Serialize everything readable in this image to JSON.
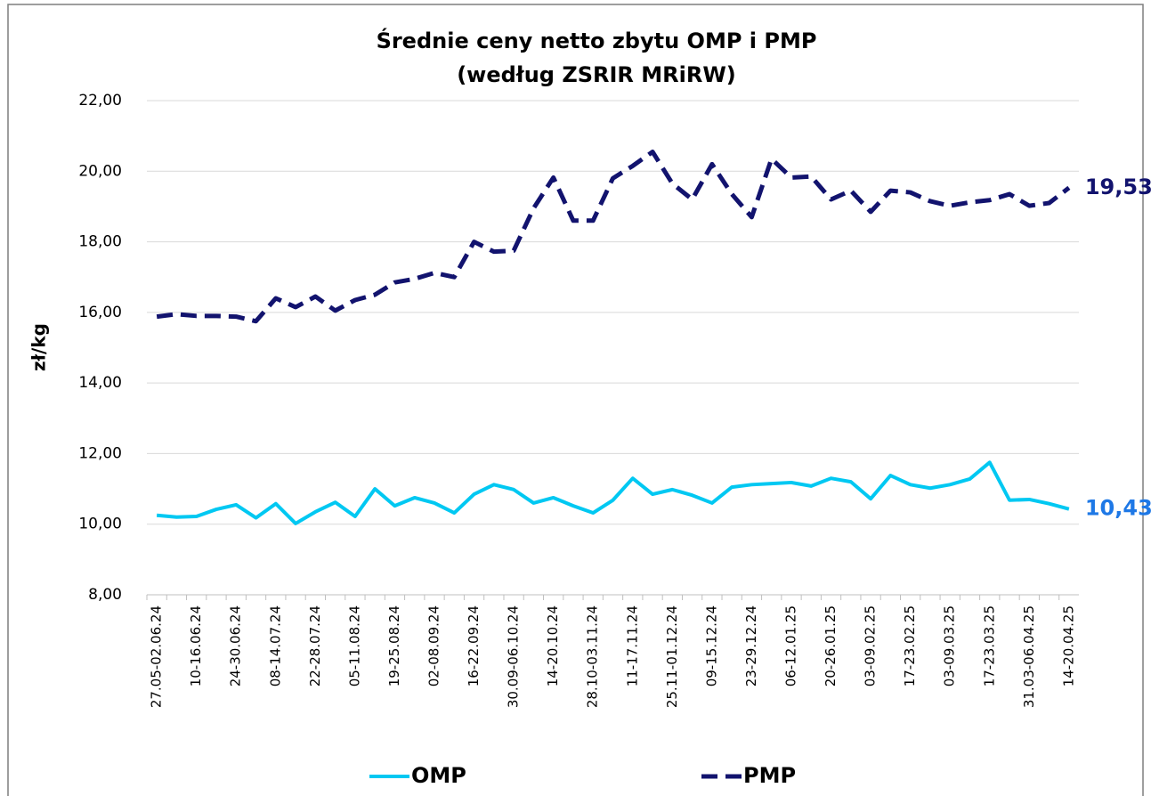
{
  "chart_data": {
    "type": "line",
    "title": "Średnie ceny netto zbytu OMP i PMP",
    "subtitle": "(według ZSRIR MRiRW)",
    "y_label": "zł/kg",
    "categories": [
      "27.05-02.06.24",
      null,
      "10-16.06.24",
      null,
      "24-30.06.24",
      null,
      "08-14.07.24",
      null,
      "22-28.07.24",
      null,
      "05-11.08.24",
      null,
      "19-25.08.24",
      null,
      "02-08.09.24",
      null,
      "16-22.09.24",
      null,
      "30.09-06.10.24",
      null,
      "14-20.10.24",
      null,
      "28.10-03.11.24",
      null,
      "11-17.11.24",
      null,
      "25.11-01.12.24",
      null,
      "09-15.12.24",
      null,
      "23-29.12.24",
      null,
      "06-12.01.25",
      null,
      "20-26.01.25",
      null,
      "03-09.02.25",
      null,
      "17-23.02.25",
      null,
      "03-09.03.25",
      null,
      "17-23.03.25",
      null,
      "31.03-06.04.25",
      null,
      "14-20.04.25"
    ],
    "series": [
      {
        "name": "OMP",
        "color": "#00c8f2",
        "label_color": "#1e78e6",
        "dashed": false,
        "values": [
          10.25,
          10.2,
          10.22,
          10.42,
          10.55,
          10.18,
          10.58,
          10.02,
          10.35,
          10.62,
          10.22,
          11.0,
          10.52,
          10.75,
          10.6,
          10.32,
          10.85,
          11.12,
          10.98,
          10.6,
          10.75,
          10.52,
          10.32,
          10.68,
          11.3,
          10.85,
          10.98,
          10.82,
          10.6,
          11.05,
          11.12,
          11.15,
          11.18,
          11.08,
          11.3,
          11.2,
          10.72,
          11.38,
          11.12,
          11.02,
          11.12,
          11.28,
          11.75,
          10.68,
          10.7,
          10.58,
          10.43
        ],
        "value_labels": [
          null,
          null,
          null,
          null,
          null,
          null,
          null,
          null,
          null,
          null,
          null,
          null,
          null,
          null,
          null,
          null,
          null,
          null,
          null,
          null,
          null,
          null,
          null,
          null,
          null,
          null,
          null,
          null,
          null,
          null,
          null,
          null,
          null,
          null,
          null,
          null,
          null,
          null,
          null,
          null,
          null,
          null,
          null,
          null,
          null,
          null,
          "10,43"
        ]
      },
      {
        "name": "PMP",
        "color": "#12136e",
        "label_color": "#12136e",
        "dashed": true,
        "values": [
          15.88,
          15.95,
          15.9,
          15.9,
          15.88,
          15.75,
          16.4,
          16.15,
          16.45,
          16.05,
          16.35,
          16.5,
          16.85,
          16.95,
          17.12,
          17.0,
          18.0,
          17.72,
          17.75,
          18.95,
          19.82,
          18.6,
          18.6,
          19.8,
          20.15,
          20.55,
          19.65,
          19.2,
          20.2,
          19.35,
          18.7,
          20.35,
          19.82,
          19.85,
          19.2,
          19.45,
          18.85,
          19.45,
          19.4,
          19.15,
          19.02,
          19.12,
          19.18,
          19.35,
          19.02,
          19.1,
          19.53
        ],
        "value_labels": [
          null,
          null,
          null,
          null,
          null,
          null,
          null,
          null,
          null,
          null,
          null,
          null,
          null,
          null,
          null,
          null,
          null,
          null,
          null,
          null,
          null,
          null,
          null,
          null,
          null,
          null,
          null,
          null,
          null,
          null,
          null,
          null,
          null,
          null,
          null,
          null,
          null,
          null,
          null,
          null,
          null,
          null,
          null,
          null,
          null,
          null,
          "19,53"
        ]
      }
    ],
    "ylim": [
      8,
      22
    ],
    "yticks": [
      {
        "value": 8,
        "label": "8,00"
      },
      {
        "value": 10,
        "label": "10,00"
      },
      {
        "value": 12,
        "label": "12,00"
      },
      {
        "value": 14,
        "label": "14,00"
      },
      {
        "value": 16,
        "label": "16,00"
      },
      {
        "value": 18,
        "label": "18,00"
      },
      {
        "value": 20,
        "label": "20,00"
      },
      {
        "value": 22,
        "label": "22,00"
      }
    ],
    "grid": true,
    "legend": "bottom"
  }
}
